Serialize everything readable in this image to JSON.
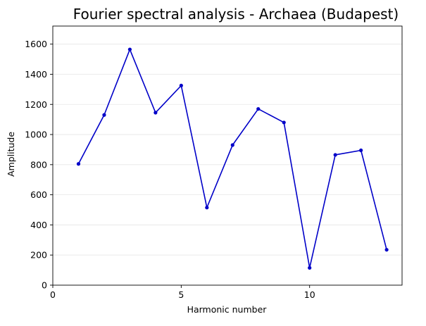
{
  "chart_data": {
    "type": "line",
    "title": "Fourier spectral analysis - Archaea (Budapest)",
    "xlabel": "Harmonic number",
    "ylabel": "Amplitude",
    "xlim": [
      0,
      13.6
    ],
    "ylim": [
      0,
      1720
    ],
    "x_ticks": [
      0,
      5,
      10
    ],
    "y_ticks": [
      0,
      200,
      400,
      600,
      800,
      1000,
      1200,
      1400,
      1600
    ],
    "grid": "horizontal",
    "line_color": "#0000c8",
    "series": [
      {
        "x": [
          1,
          2,
          3,
          4,
          5,
          6,
          7,
          8,
          9,
          10,
          11,
          12,
          13
        ],
        "values": [
          805,
          1130,
          1565,
          1145,
          1325,
          515,
          930,
          1170,
          1080,
          115,
          865,
          895,
          235
        ]
      }
    ]
  }
}
